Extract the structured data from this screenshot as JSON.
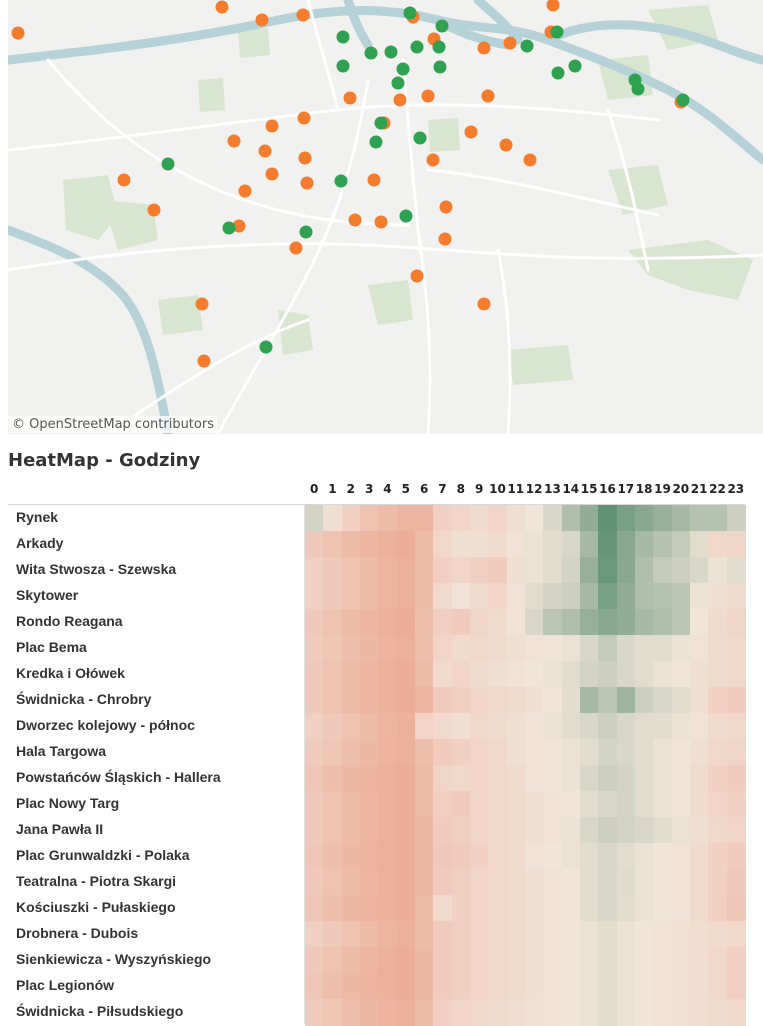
{
  "map": {
    "attribution": "© OpenStreetMap contributors",
    "background_color": "#f1f1ef",
    "park_color": "#d8e6d0",
    "water_color": "#b4d2d7",
    "road_color": "#ffffff",
    "marker_colors": {
      "orange": "#f47c2c",
      "green": "#2fa150"
    }
  },
  "heatmap": {
    "title": "HeatMap - Godziny",
    "hours": [
      "0",
      "1",
      "2",
      "3",
      "4",
      "5",
      "6",
      "7",
      "8",
      "9",
      "10",
      "11",
      "12",
      "13",
      "14",
      "15",
      "16",
      "17",
      "18",
      "19",
      "20",
      "21",
      "22",
      "23"
    ],
    "color_scale": {
      "low": "#eba08a",
      "mid": "#f1e5d8",
      "high": "#5b8f6e"
    }
  },
  "chart_data": {
    "type": "heatmap",
    "title": "HeatMap - Godziny",
    "x": [
      "0",
      "1",
      "2",
      "3",
      "4",
      "5",
      "6",
      "7",
      "8",
      "9",
      "10",
      "11",
      "12",
      "13",
      "14",
      "15",
      "16",
      "17",
      "18",
      "19",
      "20",
      "21",
      "22",
      "23"
    ],
    "y": [
      "Rynek",
      "Arkady",
      "Wita Stwosza - Szewska",
      "Skytower",
      "Rondo Reagana",
      "Plac Bema",
      "Kredka i Ołówek",
      "Świdnicka - Chrobry",
      "Dworzec kolejowy - północ",
      "Hala Targowa",
      "Powstańców Śląskich - Hallera",
      "Plac Nowy Targ",
      "Jana Pawła II",
      "Plac Grunwaldzki - Polaka",
      "Teatralna - Piotra Skargi",
      "Kościuszki - Pułaskiego",
      "Drobnera - Dubois",
      "Sienkiewicza - Wyszyńskiego",
      "Plac Legionów",
      "Świdnicka - Piłsudskiego"
    ],
    "values": [
      [
        0.6,
        0.45,
        0.35,
        0.25,
        0.2,
        0.15,
        0.15,
        0.35,
        0.38,
        0.42,
        0.38,
        0.45,
        0.5,
        0.58,
        0.72,
        0.82,
        0.98,
        0.9,
        0.85,
        0.8,
        0.75,
        0.7,
        0.7,
        0.62
      ],
      [
        0.3,
        0.25,
        0.2,
        0.15,
        0.12,
        0.1,
        0.2,
        0.4,
        0.45,
        0.45,
        0.42,
        0.48,
        0.52,
        0.55,
        0.58,
        0.75,
        0.96,
        0.85,
        0.75,
        0.7,
        0.65,
        0.55,
        0.4,
        0.38
      ],
      [
        0.35,
        0.3,
        0.25,
        0.2,
        0.15,
        0.12,
        0.2,
        0.35,
        0.38,
        0.35,
        0.32,
        0.45,
        0.52,
        0.55,
        0.6,
        0.8,
        0.95,
        0.85,
        0.72,
        0.65,
        0.62,
        0.58,
        0.52,
        0.55
      ],
      [
        0.35,
        0.3,
        0.25,
        0.2,
        0.15,
        0.12,
        0.2,
        0.42,
        0.48,
        0.42,
        0.38,
        0.48,
        0.55,
        0.6,
        0.62,
        0.75,
        0.9,
        0.82,
        0.72,
        0.7,
        0.68,
        0.52,
        0.45,
        0.42
      ],
      [
        0.3,
        0.25,
        0.2,
        0.15,
        0.12,
        0.1,
        0.22,
        0.35,
        0.32,
        0.38,
        0.42,
        0.48,
        0.58,
        0.68,
        0.72,
        0.8,
        0.85,
        0.82,
        0.75,
        0.72,
        0.68,
        0.5,
        0.42,
        0.38
      ],
      [
        0.32,
        0.28,
        0.22,
        0.18,
        0.14,
        0.12,
        0.22,
        0.38,
        0.42,
        0.4,
        0.42,
        0.45,
        0.48,
        0.5,
        0.52,
        0.58,
        0.65,
        0.58,
        0.55,
        0.55,
        0.52,
        0.48,
        0.42,
        0.4
      ],
      [
        0.3,
        0.25,
        0.2,
        0.15,
        0.12,
        0.1,
        0.2,
        0.42,
        0.38,
        0.42,
        0.45,
        0.48,
        0.5,
        0.52,
        0.55,
        0.6,
        0.62,
        0.58,
        0.55,
        0.52,
        0.5,
        0.45,
        0.42,
        0.4
      ],
      [
        0.3,
        0.25,
        0.2,
        0.15,
        0.12,
        0.1,
        0.15,
        0.32,
        0.35,
        0.38,
        0.4,
        0.42,
        0.45,
        0.5,
        0.55,
        0.75,
        0.68,
        0.78,
        0.62,
        0.58,
        0.55,
        0.45,
        0.35,
        0.32
      ],
      [
        0.35,
        0.3,
        0.25,
        0.2,
        0.15,
        0.12,
        0.38,
        0.42,
        0.45,
        0.4,
        0.42,
        0.45,
        0.48,
        0.52,
        0.55,
        0.58,
        0.62,
        0.58,
        0.55,
        0.55,
        0.52,
        0.48,
        0.42,
        0.4
      ],
      [
        0.32,
        0.28,
        0.22,
        0.18,
        0.14,
        0.12,
        0.22,
        0.32,
        0.35,
        0.38,
        0.4,
        0.45,
        0.48,
        0.5,
        0.52,
        0.55,
        0.6,
        0.58,
        0.55,
        0.52,
        0.5,
        0.45,
        0.4,
        0.38
      ],
      [
        0.28,
        0.22,
        0.18,
        0.14,
        0.12,
        0.1,
        0.2,
        0.38,
        0.4,
        0.38,
        0.4,
        0.42,
        0.48,
        0.5,
        0.52,
        0.58,
        0.62,
        0.6,
        0.55,
        0.52,
        0.5,
        0.42,
        0.35,
        0.32
      ],
      [
        0.3,
        0.25,
        0.2,
        0.15,
        0.12,
        0.1,
        0.2,
        0.35,
        0.32,
        0.38,
        0.4,
        0.42,
        0.45,
        0.48,
        0.5,
        0.55,
        0.58,
        0.6,
        0.55,
        0.52,
        0.5,
        0.42,
        0.38,
        0.35
      ],
      [
        0.3,
        0.25,
        0.2,
        0.15,
        0.12,
        0.1,
        0.18,
        0.32,
        0.35,
        0.38,
        0.4,
        0.42,
        0.45,
        0.48,
        0.52,
        0.58,
        0.62,
        0.6,
        0.58,
        0.55,
        0.52,
        0.45,
        0.4,
        0.38
      ],
      [
        0.28,
        0.22,
        0.18,
        0.14,
        0.12,
        0.1,
        0.18,
        0.3,
        0.32,
        0.35,
        0.4,
        0.42,
        0.48,
        0.5,
        0.52,
        0.55,
        0.58,
        0.55,
        0.52,
        0.5,
        0.48,
        0.42,
        0.35,
        0.32
      ],
      [
        0.3,
        0.25,
        0.2,
        0.15,
        0.12,
        0.1,
        0.18,
        0.32,
        0.35,
        0.38,
        0.4,
        0.42,
        0.45,
        0.48,
        0.5,
        0.55,
        0.58,
        0.56,
        0.52,
        0.5,
        0.48,
        0.42,
        0.35,
        0.3
      ],
      [
        0.28,
        0.22,
        0.18,
        0.14,
        0.12,
        0.1,
        0.2,
        0.42,
        0.35,
        0.38,
        0.4,
        0.42,
        0.45,
        0.48,
        0.5,
        0.55,
        0.58,
        0.55,
        0.52,
        0.5,
        0.48,
        0.42,
        0.35,
        0.28
      ],
      [
        0.35,
        0.3,
        0.25,
        0.2,
        0.15,
        0.12,
        0.2,
        0.32,
        0.35,
        0.38,
        0.4,
        0.42,
        0.45,
        0.48,
        0.5,
        0.52,
        0.55,
        0.52,
        0.5,
        0.48,
        0.46,
        0.44,
        0.42,
        0.4
      ],
      [
        0.3,
        0.25,
        0.2,
        0.15,
        0.12,
        0.1,
        0.18,
        0.32,
        0.35,
        0.38,
        0.4,
        0.42,
        0.45,
        0.48,
        0.5,
        0.52,
        0.55,
        0.52,
        0.5,
        0.48,
        0.46,
        0.44,
        0.4,
        0.35
      ],
      [
        0.28,
        0.22,
        0.18,
        0.14,
        0.12,
        0.1,
        0.18,
        0.32,
        0.35,
        0.38,
        0.4,
        0.42,
        0.45,
        0.48,
        0.5,
        0.52,
        0.55,
        0.52,
        0.5,
        0.48,
        0.46,
        0.44,
        0.4,
        0.35
      ],
      [
        0.32,
        0.28,
        0.22,
        0.18,
        0.14,
        0.12,
        0.2,
        0.35,
        0.38,
        0.4,
        0.42,
        0.44,
        0.46,
        0.48,
        0.5,
        0.52,
        0.55,
        0.52,
        0.5,
        0.48,
        0.46,
        0.44,
        0.42,
        0.4
      ]
    ],
    "xlabel": "",
    "ylabel": "",
    "grid": false,
    "legend": "none"
  }
}
